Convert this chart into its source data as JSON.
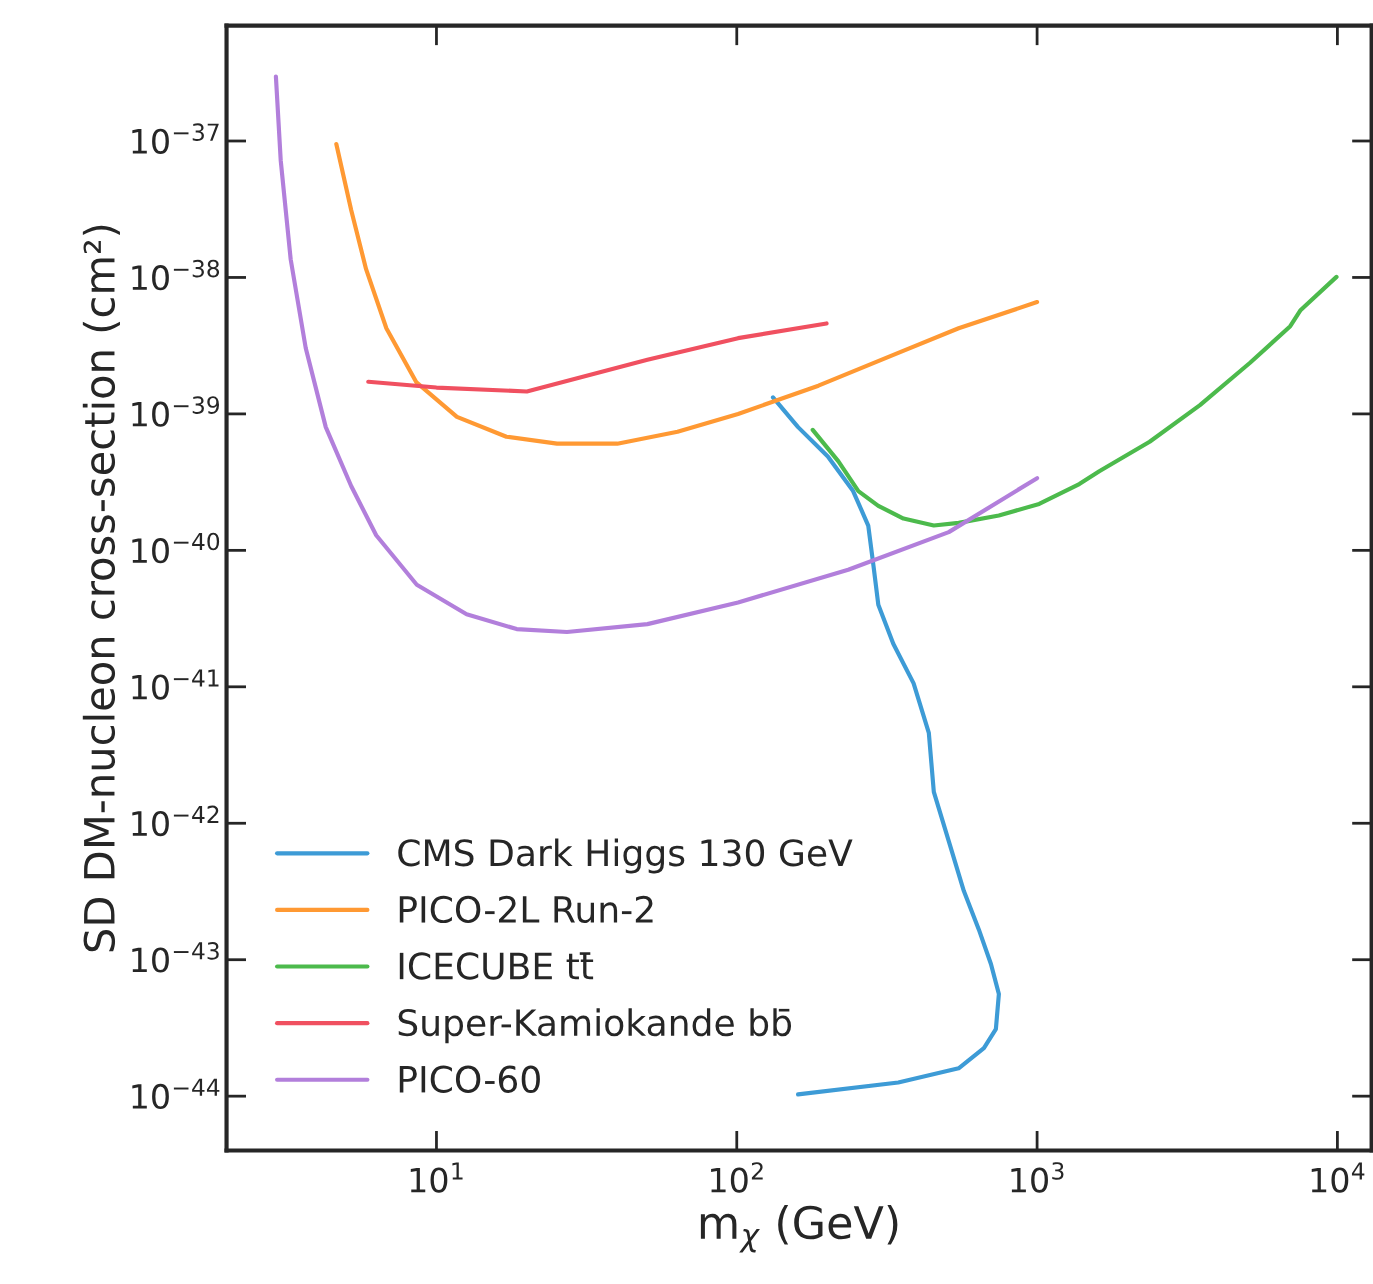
{
  "chart_data": {
    "type": "line",
    "xlabel": "m$_{χ}$ (GeV)",
    "ylabel": "SD DM-nucleon cross-section (cm²)",
    "log": "xy",
    "grid": false,
    "legend": "bottom left",
    "line_style": "solid",
    "xlim": [
      2,
      13000
    ],
    "ylim": [
      4e-45,
      7e-37
    ],
    "xticks": [
      {
        "value": 10,
        "label": "10$^{1}$"
      },
      {
        "value": 100,
        "label": "10$^{2}$"
      },
      {
        "value": 1000,
        "label": "10$^{3}$"
      },
      {
        "value": 10000,
        "label": "10$^{4}$"
      }
    ],
    "yticks": [
      {
        "value": 1e-44,
        "label": "10$^{−44}$"
      },
      {
        "value": 1e-43,
        "label": "10$^{−43}$"
      },
      {
        "value": 1e-42,
        "label": "10$^{−42}$"
      },
      {
        "value": 1e-41,
        "label": "10$^{−41}$"
      },
      {
        "value": 1e-40,
        "label": "10$^{−40}$"
      },
      {
        "value": 1e-39,
        "label": "10$^{−39}$"
      },
      {
        "value": 1e-38,
        "label": "10$^{−38}$"
      },
      {
        "value": 1e-37,
        "label": "10$^{−37}$"
      }
    ],
    "series": [
      {
        "name": "CMS Dark Higgs 130 GeV",
        "color": "#3d9bd6",
        "x": [
          132,
          160,
          201,
          244,
          274,
          285,
          296,
          332,
          388,
          436,
          453,
          508,
          570,
          640,
          702,
          746,
          729,
          665,
          548,
          345,
          160
        ],
        "values": [
          1.32e-39,
          8e-40,
          4.88e-40,
          2.72e-40,
          1.52e-40,
          7.8e-41,
          4e-41,
          2.07e-41,
          1.06e-41,
          4.6e-42,
          1.7e-42,
          7.4e-43,
          3.2e-43,
          1.66e-43,
          9.3e-44,
          5.6e-44,
          3.1e-44,
          2.25e-44,
          1.6e-44,
          1.26e-44,
          1.03e-44
        ]
      },
      {
        "name": "PICO-2L Run-2",
        "color": "#ff9933",
        "x": [
          4.64,
          5.2,
          5.83,
          6.81,
          8.58,
          11.7,
          17.1,
          25.2,
          40,
          63.5,
          101,
          187,
          345,
          548,
          1000
        ],
        "values": [
          9.5e-38,
          3.12e-38,
          1.15e-38,
          4.24e-39,
          1.7e-39,
          9.5e-40,
          6.8e-40,
          6.05e-40,
          6.05e-40,
          7.4e-40,
          9.98e-40,
          1.61e-39,
          2.8e-39,
          4.24e-39,
          6.6e-39
        ]
      },
      {
        "name": "ICECUBE tt̄",
        "color": "#4cba4c",
        "x": [
          179,
          218,
          254,
          296,
          359,
          453,
          548,
          746,
          1016,
          1382,
          1611,
          2370,
          3486,
          5119,
          6966,
          7519,
          9931
        ],
        "values": [
          7.64e-40,
          4.49e-40,
          2.72e-40,
          2.12e-40,
          1.71e-40,
          1.52e-40,
          1.59e-40,
          1.8e-40,
          2.19e-40,
          3.06e-40,
          3.8e-40,
          6.25e-40,
          1.16e-39,
          2.37e-39,
          4.39e-39,
          5.72e-39,
          1.01e-38
        ]
      },
      {
        "name": "Super-Kamiokande bb̄",
        "color": "#f05060",
        "x": [
          5.93,
          10,
          20,
          50.4,
          101,
          199
        ],
        "values": [
          1.72e-39,
          1.56e-39,
          1.46e-39,
          2.49e-39,
          3.59e-39,
          4.6e-39
        ]
      },
      {
        "name": "PICO-60",
        "color": "#b27fdb",
        "x": [
          2.92,
          3.03,
          3.27,
          3.67,
          4.28,
          5.2,
          6.3,
          8.6,
          12.6,
          18.5,
          27.2,
          50.4,
          101,
          235,
          508,
          1000
        ],
        "values": [
          2.96e-37,
          7.2e-38,
          1.36e-38,
          3.04e-39,
          8e-40,
          2.96e-40,
          1.29e-40,
          5.6e-41,
          3.4e-41,
          2.65e-41,
          2.52e-41,
          2.88e-41,
          4.15e-41,
          7.2e-41,
          1.36e-40,
          3.38e-40
        ]
      }
    ]
  }
}
